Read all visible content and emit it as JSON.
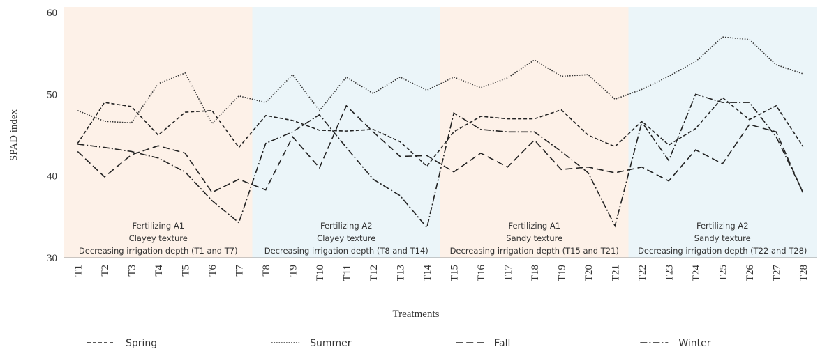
{
  "chart_data": {
    "type": "line",
    "xlabel": "Treatments",
    "ylabel": "SPAD index",
    "categories": [
      "T1",
      "T2",
      "T3",
      "T4",
      "T5",
      "T6",
      "T7",
      "T8",
      "T9",
      "T10",
      "T11",
      "T12",
      "T13",
      "T14",
      "T15",
      "T16",
      "T17",
      "T18",
      "T19",
      "T20",
      "T21",
      "T22",
      "T23",
      "T24",
      "T25",
      "T26",
      "T27",
      "T28"
    ],
    "ylim": [
      30,
      60
    ],
    "yticks": [
      30,
      40,
      50,
      60
    ],
    "grid": false,
    "legend": "bottom",
    "regions": [
      {
        "color": "#fdf1e8",
        "lines": [
          "Fertilizing A1",
          "Clayey texture",
          "Decreasing irrigation depth (T1 and T7)"
        ]
      },
      {
        "color": "#ebf5f9",
        "lines": [
          "Fertilizing A2",
          "Clayey texture",
          "Decreasing irrigation depth (T8 and T14)"
        ]
      },
      {
        "color": "#fdf1e8",
        "lines": [
          "Fertilizing A1",
          "Sandy texture",
          "Decreasing irrigation depth (T15 and T21)"
        ]
      },
      {
        "color": "#ebf5f9",
        "lines": [
          "Fertilizing A2",
          "Sandy texture",
          "Decreasing irrigation depth (T22 and T28)"
        ]
      }
    ],
    "series": [
      {
        "name": "Spring",
        "color": "#222222",
        "dash": "5 3",
        "values": [
          44,
          49,
          48.5,
          45,
          47.8,
          48,
          43.5,
          47.4,
          46.8,
          45.6,
          45.5,
          45.7,
          44.2,
          41.2,
          45.4,
          47.3,
          47,
          47,
          48.1,
          45,
          43.6,
          46.7,
          43.8,
          45.8,
          49.6,
          46.9,
          48.6,
          43.6
        ]
      },
      {
        "name": "Summer",
        "color": "#333333",
        "dash": "1.5 2",
        "values": [
          48,
          46.7,
          46.5,
          51.3,
          52.6,
          46.4,
          49.8,
          49,
          52.4,
          48,
          52.1,
          50.1,
          52.1,
          50.5,
          52.1,
          50.8,
          52,
          54.2,
          52.2,
          52.4,
          49.4,
          50.6,
          52.2,
          54,
          57,
          56.7,
          53.6,
          52.5
        ]
      },
      {
        "name": "Fall",
        "color": "#222222",
        "dash": "10 5",
        "values": [
          43,
          39.9,
          42.6,
          43.7,
          42.8,
          38,
          39.6,
          38.3,
          44.8,
          41,
          48.6,
          45.4,
          42.4,
          42.5,
          40.5,
          42.8,
          41.1,
          44.4,
          40.8,
          41.1,
          40.4,
          41.1,
          39.4,
          43.2,
          41.5,
          46.3,
          45.4,
          37.9
        ]
      },
      {
        "name": "Winter",
        "color": "#222222",
        "dash": "10 3 2 3",
        "values": [
          43.9,
          43.5,
          43,
          42.2,
          40.5,
          37,
          34.3,
          44,
          45.4,
          47.5,
          43.5,
          39.6,
          37.6,
          33.7,
          47.7,
          45.7,
          45.4,
          45.4,
          43,
          40.4,
          33.9,
          46.6,
          41.9,
          50,
          49,
          49,
          44.8,
          38
        ]
      }
    ]
  }
}
